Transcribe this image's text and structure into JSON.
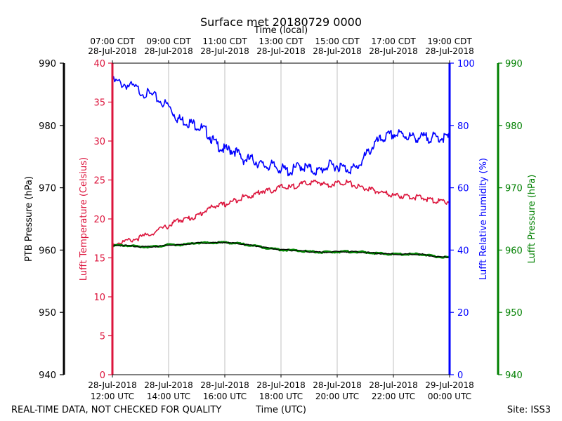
{
  "chart_data": {
    "type": "line",
    "title": "Surface met 20180729 0000",
    "top_axis": {
      "label": "Time (local)",
      "ticks": [
        [
          "07:00 CDT",
          "28-Jul-2018"
        ],
        [
          "09:00 CDT",
          "28-Jul-2018"
        ],
        [
          "11:00 CDT",
          "28-Jul-2018"
        ],
        [
          "13:00 CDT",
          "28-Jul-2018"
        ],
        [
          "15:00 CDT",
          "28-Jul-2018"
        ],
        [
          "17:00 CDT",
          "28-Jul-2018"
        ],
        [
          "19:00 CDT",
          "28-Jul-2018"
        ]
      ]
    },
    "bottom_axis": {
      "label": "Time (UTC)",
      "ticks": [
        [
          "28-Jul-2018",
          "12:00 UTC"
        ],
        [
          "28-Jul-2018",
          "14:00 UTC"
        ],
        [
          "28-Jul-2018",
          "16:00 UTC"
        ],
        [
          "28-Jul-2018",
          "18:00 UTC"
        ],
        [
          "28-Jul-2018",
          "20:00 UTC"
        ],
        [
          "28-Jul-2018",
          "22:00 UTC"
        ],
        [
          "29-Jul-2018",
          "00:00 UTC"
        ]
      ],
      "xlim": [
        "2018-07-28 12:00 UTC",
        "2018-07-29 00:00 UTC"
      ]
    },
    "axes": {
      "ptb_pressure": {
        "label": "PTB Pressure (hPa)",
        "ylim": [
          940,
          990
        ],
        "ticks": [
          "940",
          "950",
          "960",
          "970",
          "980",
          "990"
        ],
        "color": "#000000",
        "side": "left-outer"
      },
      "temperature": {
        "label": "Lufft Temperature (Celsius)",
        "ylim": [
          0,
          40
        ],
        "ticks": [
          "0",
          "5",
          "10",
          "15",
          "20",
          "25",
          "30",
          "35",
          "40"
        ],
        "color": "#dc143c",
        "side": "left-inner"
      },
      "humidity": {
        "label": "Lufft Relative humidity (%)",
        "ylim": [
          0,
          100
        ],
        "ticks": [
          "0",
          "20",
          "40",
          "60",
          "80",
          "100"
        ],
        "color": "#0000ff",
        "side": "right-inner"
      },
      "lufft_pressure": {
        "label": "Lufft Pressure (hPa)",
        "ylim": [
          940,
          990
        ],
        "ticks": [
          "940",
          "950",
          "960",
          "970",
          "980",
          "990"
        ],
        "color": "#008000",
        "side": "right-outer"
      }
    },
    "grid": "vertical",
    "series": [
      {
        "axis": "humidity",
        "color": "#0000ff",
        "x": [
          "2018-07-28 12:00",
          "2018-07-28 12:30",
          "2018-07-28 13:00",
          "2018-07-28 13:30",
          "2018-07-28 14:00",
          "2018-07-28 14:20",
          "2018-07-28 14:40",
          "2018-07-28 15:00",
          "2018-07-28 15:20",
          "2018-07-28 15:40",
          "2018-07-28 16:00",
          "2018-07-28 16:20",
          "2018-07-28 16:40",
          "2018-07-28 17:00",
          "2018-07-28 17:20",
          "2018-07-28 17:40",
          "2018-07-28 18:00",
          "2018-07-28 18:20",
          "2018-07-28 18:40",
          "2018-07-28 19:00",
          "2018-07-28 19:20",
          "2018-07-28 19:40",
          "2018-07-28 20:00",
          "2018-07-28 20:20",
          "2018-07-28 20:40",
          "2018-07-28 21:00",
          "2018-07-28 21:20",
          "2018-07-28 21:40",
          "2018-07-28 22:00",
          "2018-07-28 22:20",
          "2018-07-28 22:40",
          "2018-07-28 23:00",
          "2018-07-28 23:20",
          "2018-07-28 23:40",
          "2018-07-29 00:00"
        ],
        "values": [
          95,
          94,
          92,
          90,
          87,
          83,
          82,
          81,
          79,
          75,
          73,
          73,
          70,
          70,
          68,
          68,
          67,
          66,
          68,
          67,
          66,
          68,
          68,
          67,
          67,
          71,
          75,
          77,
          78,
          78,
          77,
          77,
          77,
          77,
          77
        ]
      },
      {
        "axis": "temperature",
        "color": "#dc143c",
        "x": [
          "2018-07-28 12:00",
          "2018-07-28 12:30",
          "2018-07-28 13:00",
          "2018-07-28 13:30",
          "2018-07-28 14:00",
          "2018-07-28 14:20",
          "2018-07-28 14:40",
          "2018-07-28 15:00",
          "2018-07-28 15:20",
          "2018-07-28 15:40",
          "2018-07-28 16:00",
          "2018-07-28 16:20",
          "2018-07-28 16:40",
          "2018-07-28 17:00",
          "2018-07-28 17:20",
          "2018-07-28 17:40",
          "2018-07-28 18:00",
          "2018-07-28 18:20",
          "2018-07-28 18:40",
          "2018-07-28 19:00",
          "2018-07-28 19:20",
          "2018-07-28 19:40",
          "2018-07-28 20:00",
          "2018-07-28 20:20",
          "2018-07-28 20:40",
          "2018-07-28 21:00",
          "2018-07-28 21:20",
          "2018-07-28 21:40",
          "2018-07-28 22:00",
          "2018-07-28 22:20",
          "2018-07-28 22:40",
          "2018-07-28 23:00",
          "2018-07-28 23:20",
          "2018-07-28 23:40",
          "2018-07-29 00:00"
        ],
        "values": [
          17,
          17.3,
          17.8,
          18.5,
          19.3,
          20,
          20.2,
          20.5,
          21.3,
          21.9,
          22,
          22.5,
          23,
          23.2,
          23.8,
          23.8,
          24.3,
          24.2,
          24.6,
          24.8,
          24.9,
          24.5,
          24.8,
          24.9,
          24.4,
          24.1,
          23.8,
          23.5,
          23.2,
          23.1,
          23,
          22.9,
          22.6,
          22.4,
          22.4
        ]
      },
      {
        "axis": "lufft_pressure",
        "color": "#008000",
        "x": [
          "2018-07-28 12:00",
          "2018-07-28 12:30",
          "2018-07-28 13:00",
          "2018-07-28 13:30",
          "2018-07-28 14:00",
          "2018-07-28 14:30",
          "2018-07-28 15:00",
          "2018-07-28 15:30",
          "2018-07-28 16:00",
          "2018-07-28 16:30",
          "2018-07-28 17:00",
          "2018-07-28 17:30",
          "2018-07-28 18:00",
          "2018-07-28 18:30",
          "2018-07-28 19:00",
          "2018-07-28 19:30",
          "2018-07-28 20:00",
          "2018-07-28 20:30",
          "2018-07-28 21:00",
          "2018-07-28 21:30",
          "2018-07-28 22:00",
          "2018-07-28 22:30",
          "2018-07-28 23:00",
          "2018-07-28 23:30",
          "2018-07-29 00:00"
        ],
        "values": [
          960.8,
          960.8,
          960.6,
          960.6,
          960.9,
          960.9,
          961.2,
          961.2,
          961.3,
          961.1,
          960.8,
          960.4,
          960.1,
          960,
          959.8,
          959.7,
          959.8,
          959.8,
          959.7,
          959.5,
          959.4,
          959.4,
          959.4,
          959,
          958.9
        ]
      },
      {
        "axis": "ptb_pressure",
        "color": "#000000",
        "x": [
          "2018-07-28 12:00",
          "2018-07-28 12:30",
          "2018-07-28 13:00",
          "2018-07-28 13:30",
          "2018-07-28 14:00",
          "2018-07-28 14:30",
          "2018-07-28 15:00",
          "2018-07-28 15:30",
          "2018-07-28 16:00",
          "2018-07-28 16:30",
          "2018-07-28 17:00",
          "2018-07-28 17:30",
          "2018-07-28 18:00",
          "2018-07-28 18:30",
          "2018-07-28 19:00",
          "2018-07-28 19:30",
          "2018-07-28 20:00",
          "2018-07-28 20:30",
          "2018-07-28 21:00",
          "2018-07-28 21:30",
          "2018-07-28 22:00",
          "2018-07-28 22:30",
          "2018-07-28 23:00",
          "2018-07-28 23:30",
          "2018-07-29 00:00"
        ],
        "values": [
          960.8,
          960.8,
          960.6,
          960.6,
          960.9,
          960.9,
          961.2,
          961.2,
          961.3,
          961.1,
          960.8,
          960.4,
          960.1,
          960,
          959.8,
          959.7,
          959.8,
          959.8,
          959.7,
          959.5,
          959.4,
          959.4,
          959.4,
          959,
          958.9
        ]
      }
    ],
    "footer_left": "REAL-TIME DATA, NOT CHECKED FOR QUALITY",
    "footer_right": "Site: ISS3"
  }
}
